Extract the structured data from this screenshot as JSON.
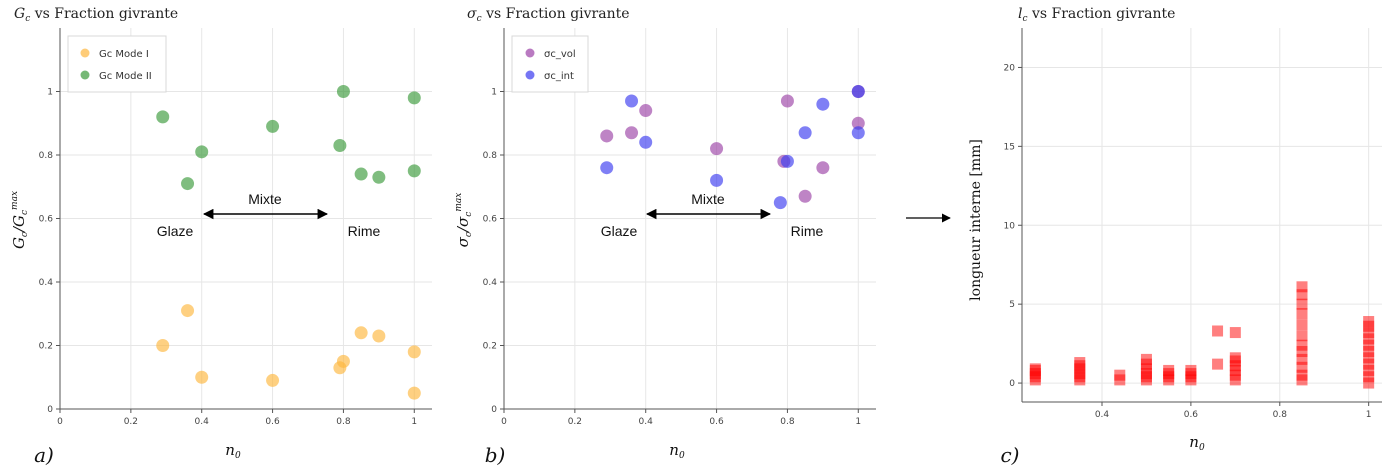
{
  "chart_data": [
    {
      "type": "scatter",
      "title": "vs Fraction givrante",
      "title_symbol": "G",
      "title_sub": "c",
      "xlabel": "n",
      "xlabel_sub": "0",
      "ylabel": "G",
      "xlim": [
        0,
        1.05
      ],
      "ylim": [
        0,
        1.2
      ],
      "xticks": [
        "0",
        "0.2",
        "0.4",
        "0.6",
        "0.8",
        "1"
      ],
      "yticks": [
        "0",
        "0.2",
        "0.4",
        "0.6",
        "0.8",
        "1"
      ],
      "grid": true,
      "legend": "top-left",
      "panel_label": "a)",
      "annotation": {
        "left": "Glaze",
        "center": "Mixte",
        "right": "Rime"
      },
      "series": [
        {
          "name": "Gc Mode I",
          "color": "#FDB73E",
          "x": [
            0.29,
            0.36,
            0.4,
            0.6,
            0.79,
            0.8,
            0.85,
            0.9,
            1.0,
            1.0
          ],
          "y": [
            0.2,
            0.31,
            0.1,
            0.09,
            0.13,
            0.15,
            0.24,
            0.23,
            0.18,
            0.05
          ]
        },
        {
          "name": "Gc Mode II",
          "color": "#3A9A3A",
          "x": [
            0.29,
            0.36,
            0.4,
            0.6,
            0.79,
            0.8,
            0.85,
            0.9,
            1.0,
            1.0
          ],
          "y": [
            0.92,
            0.71,
            0.81,
            0.89,
            0.83,
            1.0,
            0.74,
            0.73,
            0.98,
            0.75
          ]
        }
      ]
    },
    {
      "type": "scatter",
      "title": "vs Fraction givrante",
      "title_symbol": "σ",
      "title_sub": "c",
      "xlabel": "n",
      "xlabel_sub": "0",
      "ylabel": "σ",
      "xlim": [
        0,
        1.05
      ],
      "ylim": [
        0,
        1.2
      ],
      "xticks": [
        "0",
        "0.2",
        "0.4",
        "0.6",
        "0.8",
        "1"
      ],
      "yticks": [
        "0",
        "0.2",
        "0.4",
        "0.6",
        "0.8",
        "1"
      ],
      "grid": true,
      "legend": "top-left",
      "panel_label": "b)",
      "annotation": {
        "left": "Glaze",
        "center": "Mixte",
        "right": "Rime"
      },
      "series": [
        {
          "name": "σc_vol",
          "color": "#9B42A6",
          "x": [
            0.29,
            0.36,
            0.4,
            0.6,
            0.79,
            0.8,
            0.85,
            0.9,
            1.0,
            1.0
          ],
          "y": [
            0.86,
            0.87,
            0.94,
            0.82,
            0.78,
            0.97,
            0.67,
            0.76,
            0.9,
            1.0
          ]
        },
        {
          "name": "σc_int",
          "color": "#3A3AF0",
          "x": [
            0.29,
            0.36,
            0.4,
            0.6,
            0.78,
            0.8,
            0.85,
            0.9,
            1.0,
            1.0
          ],
          "y": [
            0.76,
            0.97,
            0.84,
            0.72,
            0.65,
            0.78,
            0.87,
            0.96,
            0.87,
            1.0
          ]
        }
      ]
    },
    {
      "type": "scatter",
      "title": "vs Fraction givrante",
      "title_symbol": "l",
      "title_sub": "c",
      "xlabel": "n",
      "xlabel_sub": "0",
      "ylabel": "longueur interne [mm]",
      "xlim": [
        0.22,
        1.03
      ],
      "ylim": [
        -1.2,
        22.5
      ],
      "xticks": [
        "0.4",
        "0.6",
        "0.8",
        "1"
      ],
      "yticks": [
        "0",
        "5",
        "10",
        "15",
        "20"
      ],
      "grid": true,
      "panel_label": "c)",
      "series": [
        {
          "name": "",
          "color": "#FF0000",
          "marker": "square",
          "x": [
            0.25,
            0.25,
            0.25,
            0.25,
            0.25,
            0.35,
            0.35,
            0.35,
            0.35,
            0.35,
            0.35,
            0.44,
            0.44,
            0.5,
            0.5,
            0.5,
            0.5,
            0.5,
            0.5,
            0.55,
            0.55,
            0.55,
            0.55,
            0.6,
            0.6,
            0.6,
            0.6,
            0.66,
            0.66,
            0.7,
            0.7,
            0.7,
            0.7,
            0.7,
            0.7,
            0.7,
            0.85,
            0.85,
            0.85,
            0.85,
            0.85,
            0.85,
            0.85,
            0.85,
            0.85,
            0.85,
            0.85,
            0.85,
            1,
            1,
            1,
            1,
            1,
            1,
            1,
            1,
            1,
            1,
            1
          ],
          "y": [
            0.2,
            0.4,
            0.6,
            0.8,
            0.9,
            0.2,
            0.4,
            0.6,
            0.9,
            1.1,
            1.3,
            0.2,
            0.5,
            0.2,
            0.4,
            0.6,
            0.9,
            1.2,
            1.5,
            0.2,
            0.4,
            0.6,
            0.8,
            0.2,
            0.4,
            0.6,
            0.8,
            1.2,
            3.3,
            0.2,
            0.5,
            0.8,
            1.1,
            1.4,
            1.6,
            3.2,
            0.2,
            0.5,
            1.0,
            1.5,
            2.0,
            2.4,
            3.0,
            3.7,
            4.4,
            5.0,
            5.6,
            6.1,
            0.0,
            0.4,
            0.8,
            1.2,
            1.6,
            2.0,
            2.4,
            2.8,
            3.2,
            3.6,
            3.9
          ]
        }
      ]
    }
  ]
}
